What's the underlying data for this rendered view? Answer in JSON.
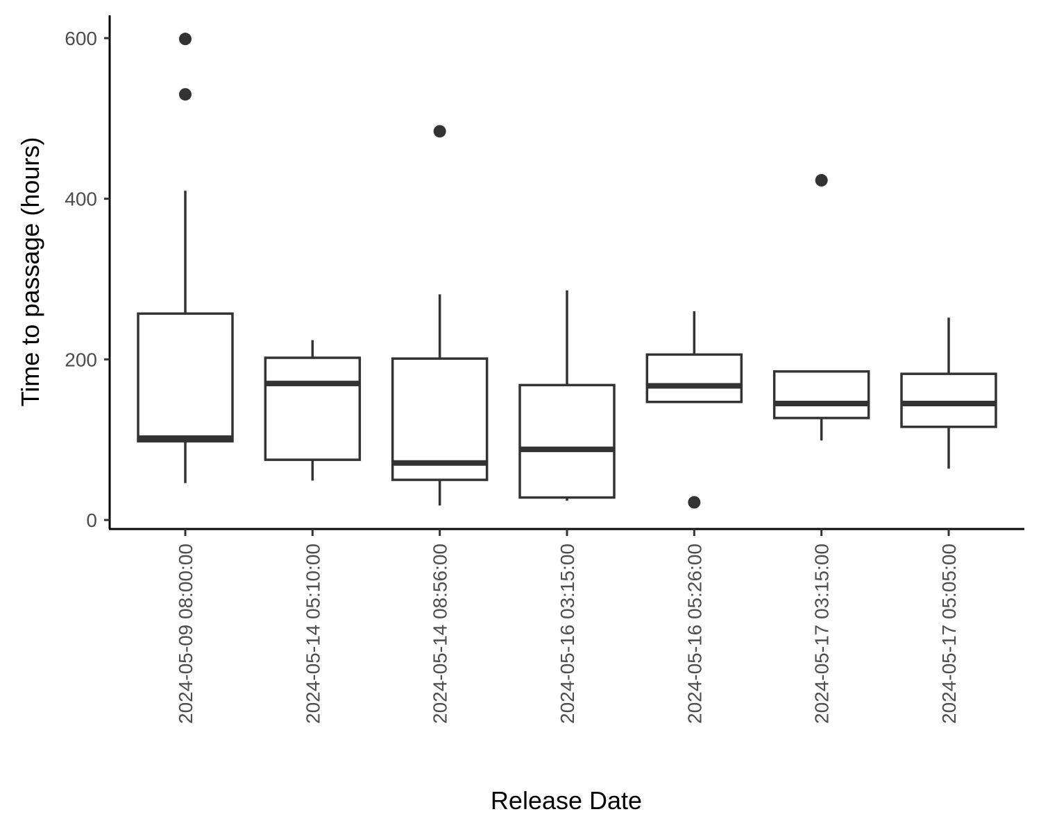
{
  "chart_data": {
    "type": "boxplot",
    "xlabel": "Release Date",
    "ylabel": "Time to passage (hours)",
    "ylim": [
      -12,
      628
    ],
    "yticks": [
      0,
      200,
      400,
      600
    ],
    "grid": false,
    "legend": "none",
    "colors": {
      "box_stroke": "#333333",
      "box_fill": "#ffffff",
      "axis": "#000000",
      "tick_label": "#4d4d4d"
    },
    "categories": [
      "2024-05-09 08:00:00",
      "2024-05-14 05:10:00",
      "2024-05-14 08:56:00",
      "2024-05-16 03:15:00",
      "2024-05-16 05:26:00",
      "2024-05-17 03:15:00",
      "2024-05-17 05:05:00"
    ],
    "boxes": [
      {
        "category": "2024-05-09 08:00:00",
        "min": 46,
        "q1": 98,
        "median": 102,
        "q3": 257,
        "max": 410,
        "outliers": [
          530,
          599
        ]
      },
      {
        "category": "2024-05-14 05:10:00",
        "min": 49,
        "q1": 75,
        "median": 170,
        "q3": 202,
        "max": 224,
        "outliers": []
      },
      {
        "category": "2024-05-14 08:56:00",
        "min": 18,
        "q1": 50,
        "median": 71,
        "q3": 201,
        "max": 281,
        "outliers": [
          484
        ]
      },
      {
        "category": "2024-05-16 03:15:00",
        "min": 24,
        "q1": 28,
        "median": 88,
        "q3": 168,
        "max": 286,
        "outliers": []
      },
      {
        "category": "2024-05-16 05:26:00",
        "min": 147,
        "q1": 147,
        "median": 167,
        "q3": 206,
        "max": 260,
        "outliers": [
          22
        ]
      },
      {
        "category": "2024-05-17 03:15:00",
        "min": 99,
        "q1": 127,
        "median": 145,
        "q3": 185,
        "max": 185,
        "outliers": [
          423
        ]
      },
      {
        "category": "2024-05-17 05:05:00",
        "min": 64,
        "q1": 116,
        "median": 145,
        "q3": 182,
        "max": 252,
        "outliers": []
      }
    ]
  }
}
